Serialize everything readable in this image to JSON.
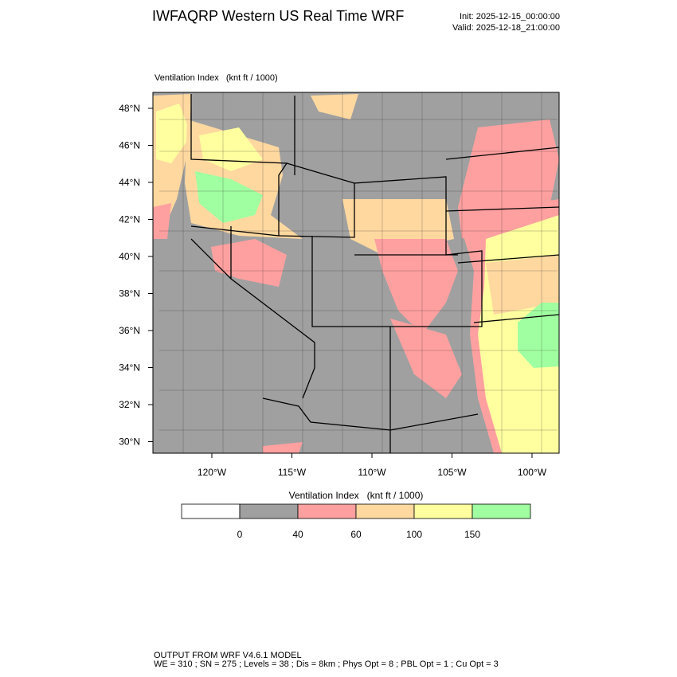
{
  "header": {
    "title": "IWFAQRP Western US Real Time WRF",
    "init": "Init: 2025-12-15_00:00:00",
    "valid": "Valid: 2025-12-18_21:00:00"
  },
  "map": {
    "label": "Ventilation Index   (knt ft / 1000)",
    "lat_labels": [
      "48°N",
      "46°N",
      "44°N",
      "42°N",
      "40°N",
      "38°N",
      "36°N",
      "34°N",
      "32°N",
      "30°N"
    ],
    "lon_labels": [
      "120°W",
      "115°W",
      "110°W",
      "105°W",
      "100°W"
    ]
  },
  "legend": {
    "title": "Ventilation Index   (knt ft / 1000)",
    "colors": [
      "#ffffff",
      "#a0a0a0",
      "#ffa0a0",
      "#ffd8a0",
      "#ffffa0",
      "#a0ffa0"
    ],
    "levels": [
      0,
      40,
      60,
      100,
      150
    ]
  },
  "footer": {
    "line1": "OUTPUT FROM WRF V4.6.1 MODEL",
    "line2": "WE = 310 ; SN = 275 ; Levels = 38 ; Dis = 8km ; Phys Opt = 8 ; PBL Opt = 1 ; Cu Opt = 3"
  }
}
